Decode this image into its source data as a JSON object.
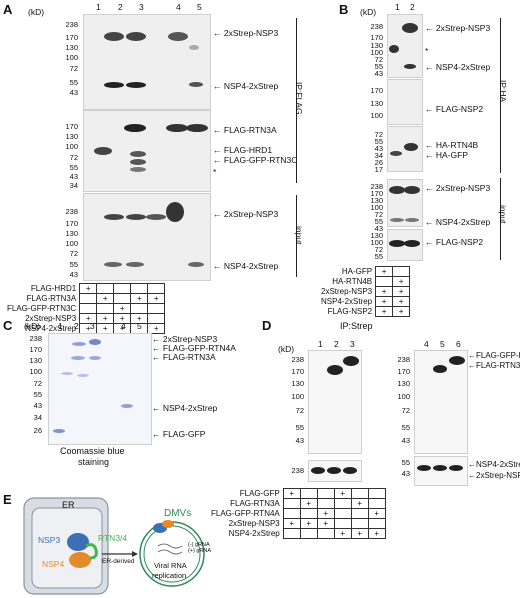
{
  "panels": {
    "A": {
      "letter": "A",
      "unit": "(kD)",
      "lanes": [
        "1",
        "2",
        "3",
        "4",
        "5"
      ],
      "ip_label": "IP:FLAG",
      "input_label": "input",
      "blot1_ticks": [
        "238",
        "170",
        "130",
        "100",
        "72",
        "55",
        "43"
      ],
      "blot1_labels": [
        "2xStrep-NSP3",
        "NSP4-2xStrep"
      ],
      "blot2_ticks": [
        "170",
        "130",
        "100",
        "72",
        "55",
        "43",
        "34"
      ],
      "blot2_labels": [
        "FLAG-RTN3A",
        "FLAG-HRD1",
        "FLAG-GFP-RTN3C",
        "*"
      ],
      "blot3_ticks": [
        "238",
        "170",
        "130",
        "100",
        "72",
        "55",
        "43"
      ],
      "blot3_labels": [
        "2xStrep-NSP3",
        "NSP4-2xStrep"
      ],
      "rows": [
        {
          "label": "FLAG-HRD1",
          "cells": [
            "+",
            "",
            "",
            "",
            ""
          ]
        },
        {
          "label": "FLAG-RTN3A",
          "cells": [
            "",
            "+",
            "",
            "+",
            "+"
          ]
        },
        {
          "label": "FLAG-GFP-RTN3C",
          "cells": [
            "",
            "",
            "+",
            "",
            ""
          ]
        },
        {
          "label": "2xStrep-NSP3",
          "cells": [
            "+",
            "+",
            "+",
            "+",
            ""
          ]
        },
        {
          "label": "NSP4-2xStrep",
          "cells": [
            "+",
            "+",
            "+",
            "",
            "+"
          ]
        }
      ]
    },
    "B": {
      "letter": "B",
      "unit": "(kD)",
      "lanes": [
        "1",
        "2"
      ],
      "ip_label": "IP:HA",
      "input_label": "input",
      "blot1_ticks": [
        "238",
        "170",
        "130",
        "100",
        "72",
        "55",
        "43"
      ],
      "blot1_labels": [
        "2xStrep-NSP3",
        "*",
        "NSP4-2xStrep"
      ],
      "blot2_ticks": [
        "170",
        "130",
        "100"
      ],
      "blot2_labels": [
        "FLAG-NSP2"
      ],
      "blot3_ticks": [
        "72",
        "55",
        "43",
        "34",
        "26",
        "17"
      ],
      "blot3_labels": [
        "HA-RTN4B",
        "HA-GFP"
      ],
      "blot4_ticks": [
        "238",
        "170",
        "130",
        "100",
        "72",
        "55",
        "43"
      ],
      "blot4_labels": [
        "2xStrep-NSP3",
        "NSP4-2xStrep"
      ],
      "blot5_ticks": [
        "130",
        "100",
        "72",
        "55"
      ],
      "blot5_labels": [
        "FLAG-NSP2"
      ],
      "rows": [
        {
          "label": "HA-GFP",
          "cells": [
            "+",
            ""
          ]
        },
        {
          "label": "HA-RTN4B",
          "cells": [
            "",
            "+"
          ]
        },
        {
          "label": "2xStrep-NSP3",
          "cells": [
            "+",
            "+"
          ]
        },
        {
          "label": "NSP4-2xStrep",
          "cells": [
            "+",
            "+"
          ]
        },
        {
          "label": "FLAG-NSP2",
          "cells": [
            "+",
            "+"
          ]
        }
      ]
    },
    "C": {
      "letter": "C",
      "unit": "(kD)",
      "lanes": [
        "1",
        "2",
        "3",
        "4",
        "5"
      ],
      "ticks": [
        "238",
        "170",
        "130",
        "100",
        "72",
        "55",
        "43",
        "34",
        "26"
      ],
      "labels": [
        "2xStrep-NSP3",
        "FLAG-GFP-RTN4A",
        "FLAG-RTN3A",
        "NSP4-2xStrep",
        "FLAG-GFP"
      ],
      "caption_line1": "Coomassie blue",
      "caption_line2": "staining"
    },
    "D": {
      "letter": "D",
      "unit": "(kD)",
      "ip_label": "IP:Strep",
      "lanes_left": [
        "1",
        "2",
        "3"
      ],
      "lanes_right": [
        "4",
        "5",
        "6"
      ],
      "ticks_top": [
        "238",
        "170",
        "130",
        "100",
        "72",
        "55",
        "43"
      ],
      "ticks_bottom": [
        "238"
      ],
      "ticks_right_top": [
        "238",
        "170",
        "130",
        "100",
        "72",
        "55",
        "43"
      ],
      "ticks_right_bottom": [
        "55",
        "43"
      ],
      "labels_top": [
        "FLAG-GFP-RTN4A",
        "FLAG-RTN3A"
      ],
      "labels_bottom": [
        "NSP4-2xStrep",
        "2xStrep-NSP3"
      ],
      "rows": [
        {
          "label": "FLAG-GFP",
          "cells": [
            "+",
            "",
            "",
            "+",
            "",
            ""
          ]
        },
        {
          "label": "FLAG-RTN3A",
          "cells": [
            "",
            "+",
            "",
            "",
            "+",
            ""
          ]
        },
        {
          "label": "FLAG-GFP-RTN4A",
          "cells": [
            "",
            "",
            "+",
            "",
            "",
            "+"
          ]
        },
        {
          "label": "2xStrep-NSP3",
          "cells": [
            "+",
            "+",
            "+",
            "",
            "",
            ""
          ]
        },
        {
          "label": "NSP4-2xStrep",
          "cells": [
            "",
            "",
            "",
            "+",
            "+",
            "+"
          ]
        }
      ]
    },
    "E": {
      "letter": "E",
      "er_label": "ER",
      "nsp3": "NSP3",
      "nsp4": "NSP4",
      "rtn": "RTN3/4",
      "er_derived": "ER-derived",
      "dmvs": "DMVs",
      "viral_line1": "Viral RNA",
      "viral_line2": "replication",
      "grna1": "(-) gRNA",
      "grna2": "(+) gRNA"
    }
  },
  "colors": {
    "nsp3": "#3b6fb6",
    "nsp4": "#e58a2a",
    "rtn": "#4caf50",
    "dmv": "#2e8b57"
  }
}
